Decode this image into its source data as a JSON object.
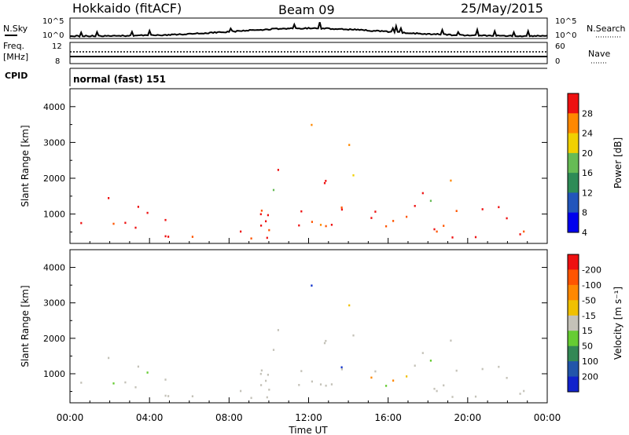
{
  "header": {
    "radar": "Hokkaido (fitACF)",
    "beam": "Beam 09",
    "date": "25/May/2015"
  },
  "noise_panel": {
    "left_label": "N.Sky",
    "right_label": "N.Search",
    "left_ticks": [
      "10^5",
      "10^0"
    ],
    "right_ticks": [
      "10^5",
      "10^0"
    ]
  },
  "freq_panel": {
    "left_label_1": "Freq.",
    "left_label_2": "[MHz]",
    "left_ticks": [
      "12",
      "8"
    ],
    "right_label": "Nave",
    "right_ticks": [
      "60",
      "0"
    ]
  },
  "cpid_panel": {
    "label": "CPID",
    "text": "normal (fast) 151"
  },
  "colors": {
    "red": "#ee1111",
    "orange": "#ff8800",
    "yellow": "#f0d000",
    "green": "#66cc33",
    "grey": "#c4c2b8",
    "blue": "#1133cc"
  },
  "chart_data": [
    {
      "type": "heatmap",
      "quantity": "power",
      "ylabel": "Slant Range [km]",
      "yticks": [
        1000,
        2000,
        3000,
        4000
      ],
      "ylim": [
        180,
        4500
      ],
      "xlim": [
        0,
        24
      ],
      "colorbar": {
        "label": "Power [dB]",
        "ticks": [
          "4",
          "8",
          "12",
          "16",
          "20",
          "24",
          "28"
        ],
        "colors": [
          "#0000ee",
          "#2255bb",
          "#2e8b57",
          "#66bb55",
          "#f0d000",
          "#ff8800",
          "#ee1111"
        ]
      }
    },
    {
      "type": "heatmap",
      "quantity": "velocity",
      "ylabel": "Slant Range [km]",
      "yticks": [
        1000,
        2000,
        3000,
        4000
      ],
      "ylim": [
        180,
        4500
      ],
      "xlim": [
        0,
        24
      ],
      "xticks": [
        "00:00",
        "04:00",
        "08:00",
        "12:00",
        "16:00",
        "20:00",
        "00:00"
      ],
      "xlabel": "Time UT",
      "colorbar": {
        "label": "Velocity [m s⁻¹]",
        "ticks": [
          "200",
          "100",
          "50",
          "15",
          "-15",
          "-50",
          "-100",
          "-200"
        ],
        "colors": [
          "#1122cc",
          "#2255aa",
          "#338855",
          "#66cc33",
          "#c4c2b8",
          "#f0c000",
          "#ff8800",
          "#ff5500",
          "#ee1111"
        ]
      }
    }
  ]
}
